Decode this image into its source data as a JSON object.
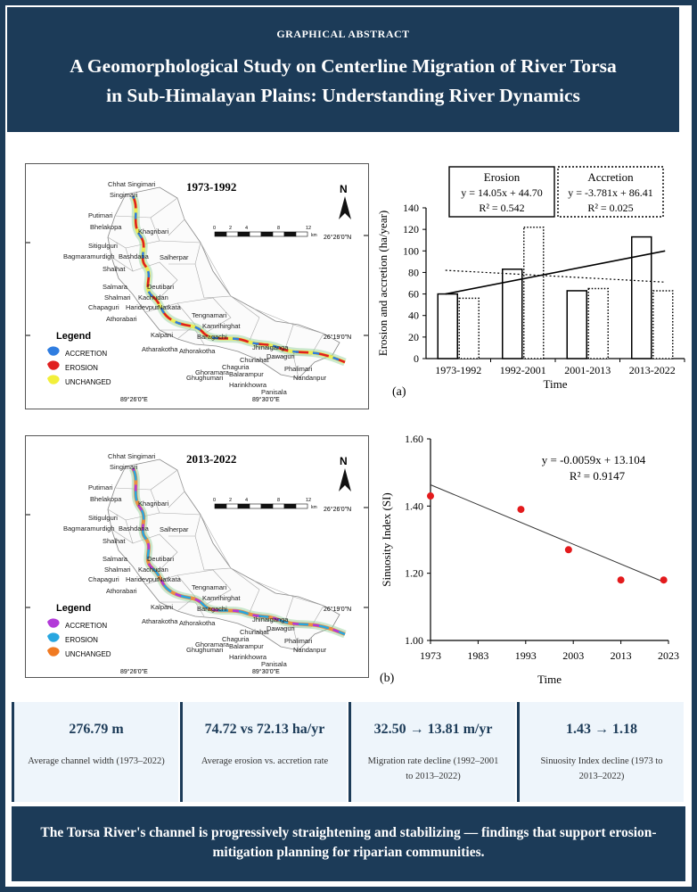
{
  "header": {
    "tag": "GRAPHICAL ABSTRACT",
    "title_line1": "A Geomorphological Study on Centerline Migration of River Torsa",
    "title_line2": "in Sub-Himalayan Plains: Understanding River Dynamics"
  },
  "map_a": {
    "period": "1973-1992",
    "north": "N",
    "lat_top": "26°26'0\"N",
    "lat_mid": "26°19'0\"N",
    "lon_left": "89°26'0\"E",
    "lon_right": "89°30'0\"E",
    "scale_ticks": [
      "0",
      "2",
      "4",
      "8",
      "12"
    ],
    "scale_unit": "km",
    "legend_title": "Legend",
    "legend": [
      {
        "label": "ACCRETION",
        "color": "#2f7de0"
      },
      {
        "label": "EROSION",
        "color": "#e02020"
      },
      {
        "label": "UNCHANGED",
        "color": "#f2ef3a"
      }
    ],
    "places": [
      "Chhat Singimari",
      "Singimari",
      "Putimari",
      "Bhelakopa",
      "Khagribari",
      "Sitigulguri",
      "Bagmaramurdigh",
      "Bashdana",
      "Salherpar",
      "Shalhat",
      "Salmara",
      "Deutibari",
      "Shalmari",
      "Kachudan",
      "Chapaguri",
      "Haridevpur",
      "Natkata",
      "Athorabari",
      "Tengnamari",
      "Kamrihirghat",
      "Kalpani",
      "Baragachi",
      "Atharakotha",
      "Athorakotha",
      "Jhinaiganga",
      "Dawaguri",
      "Churiahat",
      "Chaguria",
      "Ghughumari",
      "Phalimari",
      "Balarampur",
      "Nandanpur",
      "Harinkhowra",
      "Panisala",
      "Ghoramara"
    ]
  },
  "map_b": {
    "period": "2013-2022",
    "north": "N",
    "lat_top": "26°26'0\"N",
    "lat_mid": "26°19'0\"N",
    "lon_left": "89°26'0\"E",
    "lon_right": "89°30'0\"E",
    "scale_ticks": [
      "0",
      "2",
      "4",
      "8",
      "12"
    ],
    "scale_unit": "km",
    "legend_title": "Legend",
    "legend": [
      {
        "label": "ACCRETION",
        "color": "#b23ad8"
      },
      {
        "label": "EROSION",
        "color": "#27a6e0"
      },
      {
        "label": "UNCHANGED",
        "color": "#f07a22"
      }
    ],
    "places": [
      "Chhat Singimari",
      "Singimari",
      "Putimari",
      "Bhelakopa",
      "Khagribari",
      "Sitigulguri",
      "Bagmaramurdigh",
      "Bashdana",
      "Salherpar",
      "Shalhat",
      "Salmara",
      "Deutibari",
      "Shalmari",
      "Kachudan",
      "Chapaguri",
      "Haridevpur",
      "Natkata",
      "Athorabari",
      "Tengnamari",
      "Kamrihirghat",
      "Kalpani",
      "Baragachi",
      "Atharakotha",
      "Athorakotha",
      "Jhinaiganga",
      "Dawaguri",
      "Churiahat",
      "Chaguria",
      "Ghughumari",
      "Phalimari",
      "Balarampur",
      "Nandanpur",
      "Harinkhowra",
      "Panisala",
      "Ghoramara"
    ]
  },
  "chart_data": [
    {
      "type": "bar",
      "panel_label": "(a)",
      "categories": [
        "1973-1992",
        "1992-2001",
        "2001-2013",
        "2013-2022"
      ],
      "series": [
        {
          "name": "Erosion",
          "values": [
            60,
            83,
            63,
            113
          ],
          "style": "solid"
        },
        {
          "name": "Accretion",
          "values": [
            56,
            122,
            65,
            63
          ],
          "style": "dotted"
        }
      ],
      "ylabel": "Erosion and accretion (ha/year)",
      "xlabel": "Time",
      "ylim": [
        0,
        140
      ],
      "yticks": [
        0,
        20,
        40,
        60,
        80,
        100,
        120,
        140
      ],
      "trendlines": [
        {
          "series": "Erosion",
          "style": "solid",
          "start": 60,
          "end": 100
        },
        {
          "series": "Accretion",
          "style": "dotted",
          "start": 82,
          "end": 71
        }
      ],
      "annotations": [
        {
          "title": "Erosion",
          "eq": "y = 14.05x + 44.70",
          "r2": "R² = 0.542"
        },
        {
          "title": "Accretion",
          "eq": "y = -3.781x + 86.41",
          "r2": "R² = 0.025"
        }
      ]
    },
    {
      "type": "scatter",
      "panel_label": "(b)",
      "x": [
        1973,
        1992,
        2002,
        2013,
        2022
      ],
      "y": [
        1.43,
        1.39,
        1.27,
        1.18,
        1.18
      ],
      "point_color": "#e31a1c",
      "xlabel": "Time",
      "ylabel": "Sinuosity Index (SI)",
      "xlim": [
        1973,
        2023
      ],
      "xticks": [
        1973,
        1983,
        1993,
        2003,
        2013,
        2023
      ],
      "ylim": [
        1.0,
        1.6
      ],
      "yticks": [
        "1.00",
        "1.20",
        "1.40",
        "1.60"
      ],
      "trendline": {
        "slope": -0.0059,
        "intercept": 13.104
      },
      "equation": "y = -0.0059x + 13.104",
      "r2": "R² = 0.9147"
    }
  ],
  "stats": [
    {
      "value": "276.79 m",
      "label": "Average channel width (1973–2022)"
    },
    {
      "value": "74.72 vs 72.13 ha/yr",
      "label": "Average erosion vs. accretion rate"
    },
    {
      "value": "32.50 → 13.81 m/yr",
      "label": "Migration rate decline (1992–2001 to 2013–2022)"
    },
    {
      "value": "1.43 → 1.18",
      "label": "Sinuosity Index decline (1973 to 2013–2022)"
    }
  ],
  "footer": "The Torsa River's channel is progressively straightening and stabilizing — findings that support erosion-mitigation planning for riparian communities."
}
